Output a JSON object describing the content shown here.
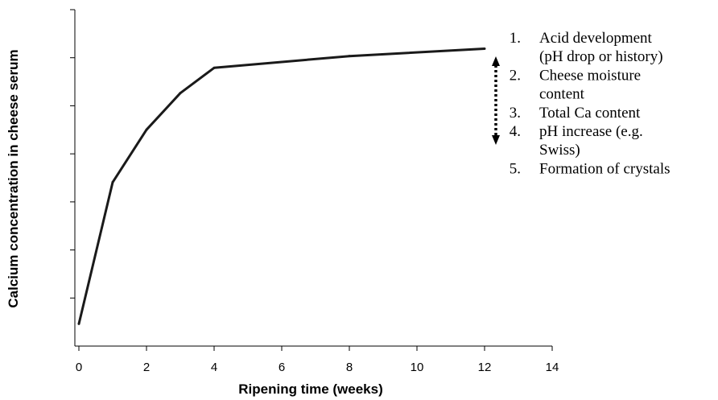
{
  "chart_data": {
    "type": "line",
    "xlabel": "Ripening time (weeks)",
    "ylabel": "Calcium concentration in cheese serum",
    "xlim": [
      0,
      14
    ],
    "x_ticks": [
      "0",
      "2",
      "4",
      "6",
      "8",
      "10",
      "12",
      "14"
    ],
    "y_tick_count": 7,
    "ylim": [
      0,
      1
    ],
    "grid": false,
    "series": [
      {
        "x": [
          0,
          1,
          2,
          3,
          4,
          8,
          12
        ],
        "y": [
          0.066,
          0.487,
          0.643,
          0.752,
          0.827,
          0.862,
          0.884
        ],
        "color": "#1a1a1a"
      }
    ],
    "annotation": {
      "arrow": "double-headed dotted vertical arrow beside the curve end",
      "items": [
        {
          "number": "1.",
          "lines": [
            "Acid development",
            "(pH drop or history)"
          ]
        },
        {
          "number": "2.",
          "lines": [
            "Cheese moisture",
            "content"
          ]
        },
        {
          "number": "3.",
          "lines": [
            "Total Ca content"
          ]
        },
        {
          "number": "4.",
          "lines": [
            "pH increase (e.g.",
            "Swiss)"
          ]
        },
        {
          "number": "5.",
          "lines": [
            "Formation of crystals"
          ]
        }
      ]
    }
  }
}
